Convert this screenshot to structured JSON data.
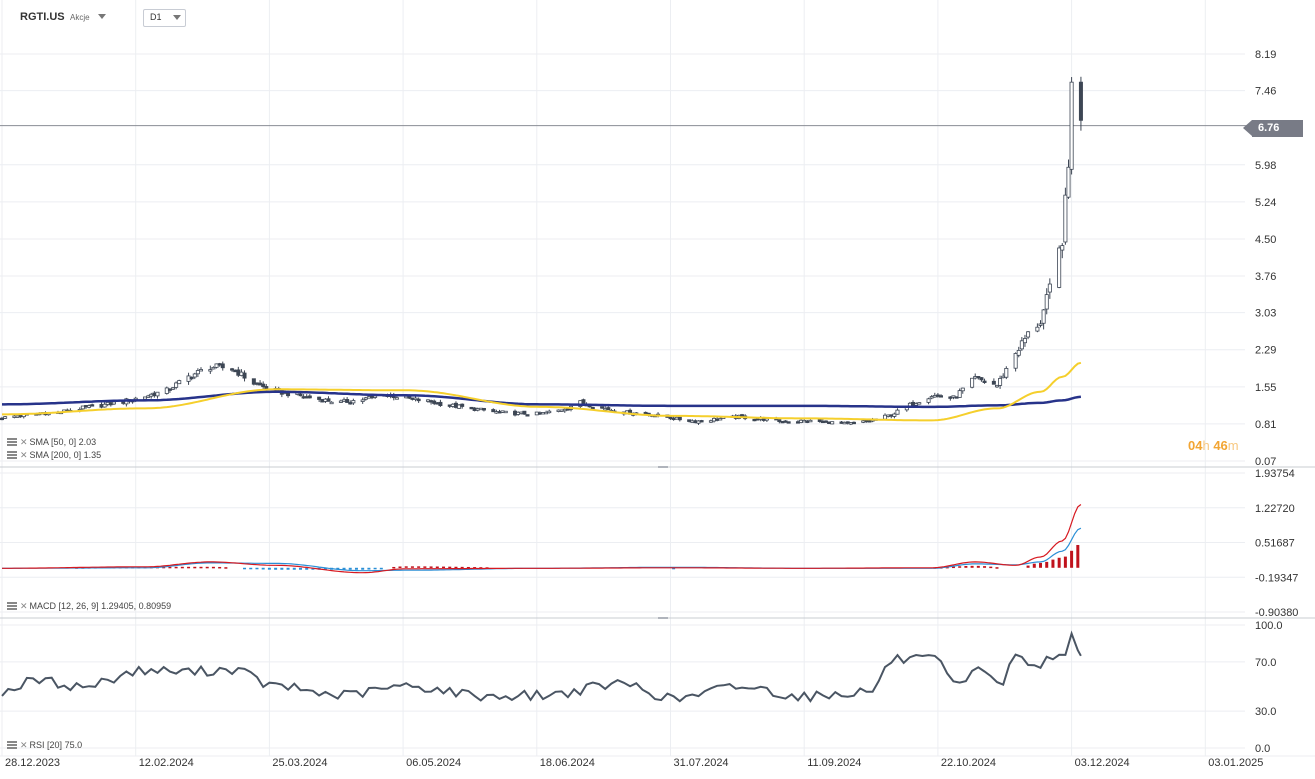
{
  "header": {
    "symbol": "RGTI.US",
    "asset_type": "Akcje",
    "timeframe": "D1"
  },
  "last_price_label": "6.76",
  "countdown": {
    "hours": "04",
    "h_unit": "h",
    "minutes": "46",
    "m_unit": "m"
  },
  "legends": {
    "sma50": "SMA [50, 0] 2.03",
    "sma200": "SMA [200, 0] 1.35",
    "macd": "MACD [12, 26, 9] 1.29405, 0.80959",
    "rsi": "RSI [20] 75.0"
  },
  "colors": {
    "up": "#ffffff",
    "down": "#3d4654",
    "sma50": "#f5cf2c",
    "sma200": "#27338a",
    "macd_line": "#d71920",
    "macd_signal": "#2b8fd6",
    "hist_pos": "#c0121c",
    "hist_neg": "#2b8fd6",
    "rsi": "#4a5563",
    "grid": "#eceef2",
    "separator": "#c9ccd2"
  },
  "chart_data": [
    {
      "type": "candlestick",
      "panel": "price",
      "title": "RGTI.US",
      "x_labels": [
        "28.12.2023",
        "12.02.2024",
        "25.03.2024",
        "06.05.2024",
        "18.06.2024",
        "31.07.2024",
        "11.09.2024",
        "22.10.2024",
        "03.12.2024",
        "03.01.2025"
      ],
      "y_ticks": [
        "8.19",
        "7.46",
        "6.76",
        "5.98",
        "5.24",
        "4.50",
        "3.76",
        "3.03",
        "2.29",
        "1.55",
        "0.81",
        "0.07"
      ],
      "ylim": [
        0.07,
        8.19
      ],
      "current_price": 6.76,
      "series": [
        {
          "name": "Price",
          "x": [
            "2023-12-28",
            "2024-01-03",
            "2024-01-09",
            "2024-01-15",
            "2024-01-22",
            "2024-01-29",
            "2024-02-05",
            "2024-02-12",
            "2024-02-19",
            "2024-02-26",
            "2024-03-04",
            "2024-03-11",
            "2024-03-18",
            "2024-03-25",
            "2024-04-01",
            "2024-04-08",
            "2024-04-15",
            "2024-04-22",
            "2024-04-29",
            "2024-05-06",
            "2024-05-13",
            "2024-05-20",
            "2024-05-27",
            "2024-06-03",
            "2024-06-10",
            "2024-06-18",
            "2024-06-24",
            "2024-07-01",
            "2024-07-08",
            "2024-07-15",
            "2024-07-22",
            "2024-07-31",
            "2024-08-07",
            "2024-08-14",
            "2024-08-21",
            "2024-08-28",
            "2024-09-04",
            "2024-09-11",
            "2024-09-18",
            "2024-09-25",
            "2024-10-02",
            "2024-10-09",
            "2024-10-16",
            "2024-10-22",
            "2024-10-29",
            "2024-11-05",
            "2024-11-12",
            "2024-11-18",
            "2024-11-22",
            "2024-11-26",
            "2024-11-29",
            "2024-12-03",
            "2024-12-05",
            "2024-12-06",
            "2024-12-09"
          ],
          "close": [
            0.93,
            0.98,
            1.02,
            1.04,
            1.12,
            1.18,
            1.26,
            1.36,
            1.48,
            1.75,
            1.95,
            1.92,
            1.62,
            1.46,
            1.38,
            1.3,
            1.24,
            1.3,
            1.4,
            1.32,
            1.26,
            1.18,
            1.12,
            1.05,
            1.02,
            1.01,
            1.08,
            1.24,
            1.13,
            1.04,
            1.02,
            0.92,
            0.86,
            0.91,
            0.95,
            0.91,
            0.86,
            0.87,
            0.85,
            0.81,
            0.87,
            0.99,
            1.22,
            1.38,
            1.33,
            1.72,
            1.58,
            2.23,
            2.6,
            2.85,
            3.5,
            4.5,
            5.9,
            7.8,
            6.76
          ]
        }
      ]
    },
    {
      "type": "line",
      "panel": "price",
      "series": [
        {
          "name": "SMA [50, 0]",
          "x": [
            "2023-12-28",
            "2024-02-12",
            "2024-03-25",
            "2024-05-06",
            "2024-06-18",
            "2024-07-31",
            "2024-09-11",
            "2024-10-22",
            "2024-11-12",
            "2024-11-26",
            "2024-12-03",
            "2024-12-09"
          ],
          "values": [
            1.0,
            1.12,
            1.5,
            1.48,
            1.15,
            0.97,
            0.92,
            0.88,
            1.12,
            1.45,
            1.75,
            2.03
          ]
        },
        {
          "name": "SMA [200, 0]",
          "x": [
            "2023-12-28",
            "2024-02-12",
            "2024-03-25",
            "2024-05-06",
            "2024-06-18",
            "2024-07-31",
            "2024-09-11",
            "2024-10-22",
            "2024-11-12",
            "2024-11-26",
            "2024-12-03",
            "2024-12-09"
          ],
          "values": [
            1.2,
            1.28,
            1.45,
            1.38,
            1.2,
            1.17,
            1.17,
            1.15,
            1.18,
            1.23,
            1.28,
            1.35
          ]
        }
      ]
    },
    {
      "type": "bar",
      "panel": "macd",
      "y_ticks": [
        "1.93754",
        "1.22720",
        "0.51687",
        "-0.19347",
        "-0.90380"
      ],
      "ylim": [
        -0.9038,
        1.93754
      ],
      "series": [
        {
          "name": "MACD",
          "x": [
            "2023-12-28",
            "2024-02-12",
            "2024-03-04",
            "2024-03-25",
            "2024-04-22",
            "2024-05-06",
            "2024-06-18",
            "2024-07-31",
            "2024-09-11",
            "2024-10-22",
            "2024-11-05",
            "2024-11-18",
            "2024-11-26",
            "2024-12-03",
            "2024-12-09"
          ],
          "values": [
            -0.01,
            0.02,
            0.12,
            0.05,
            -0.1,
            -0.02,
            -0.01,
            0.0,
            -0.01,
            0.0,
            0.12,
            0.05,
            0.22,
            0.55,
            1.29405
          ]
        },
        {
          "name": "Signal",
          "x": [
            "2023-12-28",
            "2024-02-12",
            "2024-03-04",
            "2024-03-25",
            "2024-04-22",
            "2024-05-06",
            "2024-06-18",
            "2024-07-31",
            "2024-09-11",
            "2024-10-22",
            "2024-11-05",
            "2024-11-18",
            "2024-11-26",
            "2024-12-03",
            "2024-12-09"
          ],
          "values": [
            -0.01,
            0.0,
            0.1,
            0.09,
            -0.06,
            -0.05,
            -0.01,
            0.01,
            -0.01,
            -0.01,
            0.08,
            0.06,
            0.12,
            0.34,
            0.80959
          ]
        }
      ]
    },
    {
      "type": "line",
      "panel": "rsi",
      "y_ticks": [
        "100.0",
        "70.0",
        "30.0",
        "0.0"
      ],
      "ylim": [
        0,
        100
      ],
      "series": [
        {
          "name": "RSI [20]",
          "x": [
            "2023-12-28",
            "2024-01-08",
            "2024-01-22",
            "2024-02-12",
            "2024-02-26",
            "2024-03-11",
            "2024-03-25",
            "2024-04-15",
            "2024-05-06",
            "2024-06-03",
            "2024-06-18",
            "2024-07-15",
            "2024-07-31",
            "2024-08-21",
            "2024-09-11",
            "2024-10-02",
            "2024-10-10",
            "2024-10-22",
            "2024-10-31",
            "2024-11-07",
            "2024-11-14",
            "2024-11-18",
            "2024-11-22",
            "2024-12-03",
            "2024-12-06",
            "2024-12-09"
          ],
          "values": [
            46,
            55,
            50,
            63,
            62,
            64,
            50,
            43,
            50,
            42,
            43,
            52,
            40,
            50,
            42,
            46,
            72,
            72,
            50,
            65,
            52,
            78,
            66,
            75,
            93,
            75.0
          ]
        }
      ]
    }
  ]
}
